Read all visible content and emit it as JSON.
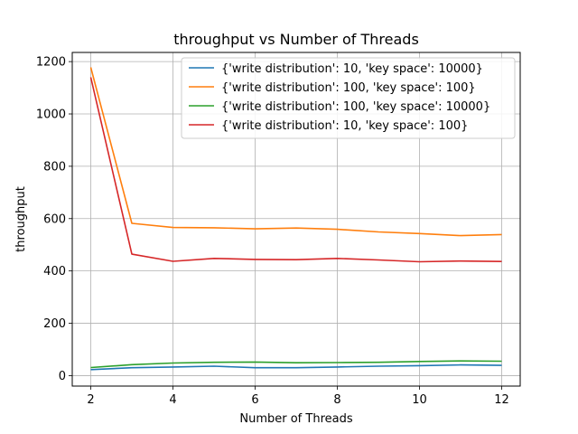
{
  "chart_data": {
    "type": "line",
    "title": "throughput vs Number of Threads",
    "xlabel": "Number of Threads",
    "ylabel": "throughput",
    "xlim": [
      1.55,
      12.45
    ],
    "ylim": [
      -40,
      1235
    ],
    "xticks": [
      2,
      4,
      6,
      8,
      10,
      12
    ],
    "yticks": [
      0,
      200,
      400,
      600,
      800,
      1000,
      1200
    ],
    "grid": true,
    "legend_position": "top-right",
    "x": [
      2,
      3,
      4,
      5,
      6,
      7,
      8,
      9,
      10,
      11,
      12
    ],
    "series": [
      {
        "name": "{'write distribution': 10, 'key space': 10000}",
        "color": "#1f77b4",
        "values": [
          23,
          30,
          33,
          36,
          30,
          30,
          33,
          36,
          38,
          41,
          39
        ]
      },
      {
        "name": "{'write distribution': 100, 'key space': 100}",
        "color": "#ff7f0e",
        "values": [
          1178,
          582,
          566,
          565,
          561,
          564,
          559,
          549,
          543,
          535,
          539
        ]
      },
      {
        "name": "{'write distribution': 100, 'key space': 10000}",
        "color": "#2ca02c",
        "values": [
          31,
          42,
          48,
          51,
          52,
          49,
          50,
          51,
          54,
          56,
          55
        ]
      },
      {
        "name": "{'write distribution': 10, 'key space': 100}",
        "color": "#d62728",
        "values": [
          1140,
          464,
          437,
          448,
          444,
          443,
          448,
          442,
          435,
          438,
          436
        ]
      }
    ]
  }
}
